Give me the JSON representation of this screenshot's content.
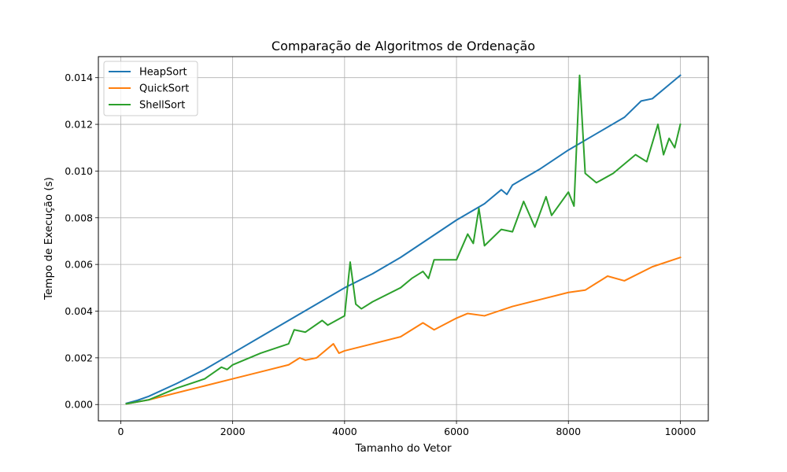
{
  "chart_data": {
    "type": "line",
    "title": "Comparação de Algoritmos de Ordenação",
    "xlabel": "Tamanho do Vetor",
    "ylabel": "Tempo de Execução (s)",
    "xlim": [
      -400,
      10500
    ],
    "ylim": [
      -0.0007,
      0.0149
    ],
    "xticks": [
      0,
      2000,
      4000,
      6000,
      8000,
      10000
    ],
    "yticks": [
      0.0,
      0.002,
      0.004,
      0.006,
      0.008,
      0.01,
      0.012,
      0.014
    ],
    "ytick_labels": [
      "0.000",
      "0.002",
      "0.004",
      "0.006",
      "0.008",
      "0.010",
      "0.012",
      "0.014"
    ],
    "grid": true,
    "legend_position": "top-left",
    "series": [
      {
        "name": "HeapSort",
        "color": "#1f77b4",
        "points": [
          [
            100,
            5e-05
          ],
          [
            300,
            0.00018
          ],
          [
            500,
            0.00035
          ],
          [
            1000,
            0.0009
          ],
          [
            1500,
            0.0015
          ],
          [
            2000,
            0.0022
          ],
          [
            2500,
            0.0029
          ],
          [
            3000,
            0.0036
          ],
          [
            3500,
            0.0043
          ],
          [
            4000,
            0.005
          ],
          [
            4500,
            0.0056
          ],
          [
            5000,
            0.0063
          ],
          [
            5500,
            0.0071
          ],
          [
            6000,
            0.0079
          ],
          [
            6500,
            0.0086
          ],
          [
            6800,
            0.0092
          ],
          [
            6900,
            0.009
          ],
          [
            7000,
            0.0094
          ],
          [
            7500,
            0.0101
          ],
          [
            8000,
            0.0109
          ],
          [
            8500,
            0.0116
          ],
          [
            9000,
            0.0123
          ],
          [
            9300,
            0.013
          ],
          [
            9500,
            0.0131
          ],
          [
            9800,
            0.0137
          ],
          [
            10000,
            0.0141
          ]
        ]
      },
      {
        "name": "QuickSort",
        "color": "#ff7f0e",
        "points": [
          [
            100,
            3e-05
          ],
          [
            500,
            0.0002
          ],
          [
            1000,
            0.0005
          ],
          [
            1500,
            0.0008
          ],
          [
            2000,
            0.0011
          ],
          [
            2500,
            0.0014
          ],
          [
            3000,
            0.0017
          ],
          [
            3200,
            0.002
          ],
          [
            3300,
            0.0019
          ],
          [
            3500,
            0.002
          ],
          [
            3800,
            0.0026
          ],
          [
            3900,
            0.0022
          ],
          [
            4000,
            0.0023
          ],
          [
            4500,
            0.0026
          ],
          [
            5000,
            0.0029
          ],
          [
            5400,
            0.0035
          ],
          [
            5600,
            0.0032
          ],
          [
            6000,
            0.0037
          ],
          [
            6200,
            0.0039
          ],
          [
            6500,
            0.0038
          ],
          [
            7000,
            0.0042
          ],
          [
            7500,
            0.0045
          ],
          [
            8000,
            0.0048
          ],
          [
            8300,
            0.0049
          ],
          [
            8500,
            0.0052
          ],
          [
            8700,
            0.0055
          ],
          [
            9000,
            0.0053
          ],
          [
            9500,
            0.0059
          ],
          [
            10000,
            0.0063
          ]
        ]
      },
      {
        "name": "ShellSort",
        "color": "#2ca02c",
        "points": [
          [
            100,
            3e-05
          ],
          [
            500,
            0.0002
          ],
          [
            1000,
            0.0007
          ],
          [
            1500,
            0.0011
          ],
          [
            1800,
            0.0016
          ],
          [
            1900,
            0.0015
          ],
          [
            2000,
            0.0017
          ],
          [
            2500,
            0.0022
          ],
          [
            3000,
            0.0026
          ],
          [
            3100,
            0.0032
          ],
          [
            3300,
            0.0031
          ],
          [
            3600,
            0.0036
          ],
          [
            3700,
            0.0034
          ],
          [
            4000,
            0.0038
          ],
          [
            4100,
            0.0061
          ],
          [
            4200,
            0.0043
          ],
          [
            4300,
            0.0041
          ],
          [
            4500,
            0.0044
          ],
          [
            5000,
            0.005
          ],
          [
            5200,
            0.0054
          ],
          [
            5400,
            0.0057
          ],
          [
            5500,
            0.0054
          ],
          [
            5600,
            0.0062
          ],
          [
            6000,
            0.0062
          ],
          [
            6200,
            0.0073
          ],
          [
            6300,
            0.0069
          ],
          [
            6400,
            0.0084
          ],
          [
            6500,
            0.0068
          ],
          [
            6800,
            0.0075
          ],
          [
            7000,
            0.0074
          ],
          [
            7200,
            0.0087
          ],
          [
            7400,
            0.0076
          ],
          [
            7600,
            0.0089
          ],
          [
            7700,
            0.0081
          ],
          [
            8000,
            0.0091
          ],
          [
            8100,
            0.0085
          ],
          [
            8200,
            0.0141
          ],
          [
            8300,
            0.0099
          ],
          [
            8500,
            0.0095
          ],
          [
            8800,
            0.0099
          ],
          [
            9000,
            0.0103
          ],
          [
            9200,
            0.0107
          ],
          [
            9400,
            0.0104
          ],
          [
            9600,
            0.012
          ],
          [
            9700,
            0.0107
          ],
          [
            9800,
            0.0114
          ],
          [
            9900,
            0.011
          ],
          [
            10000,
            0.012
          ]
        ]
      }
    ]
  }
}
